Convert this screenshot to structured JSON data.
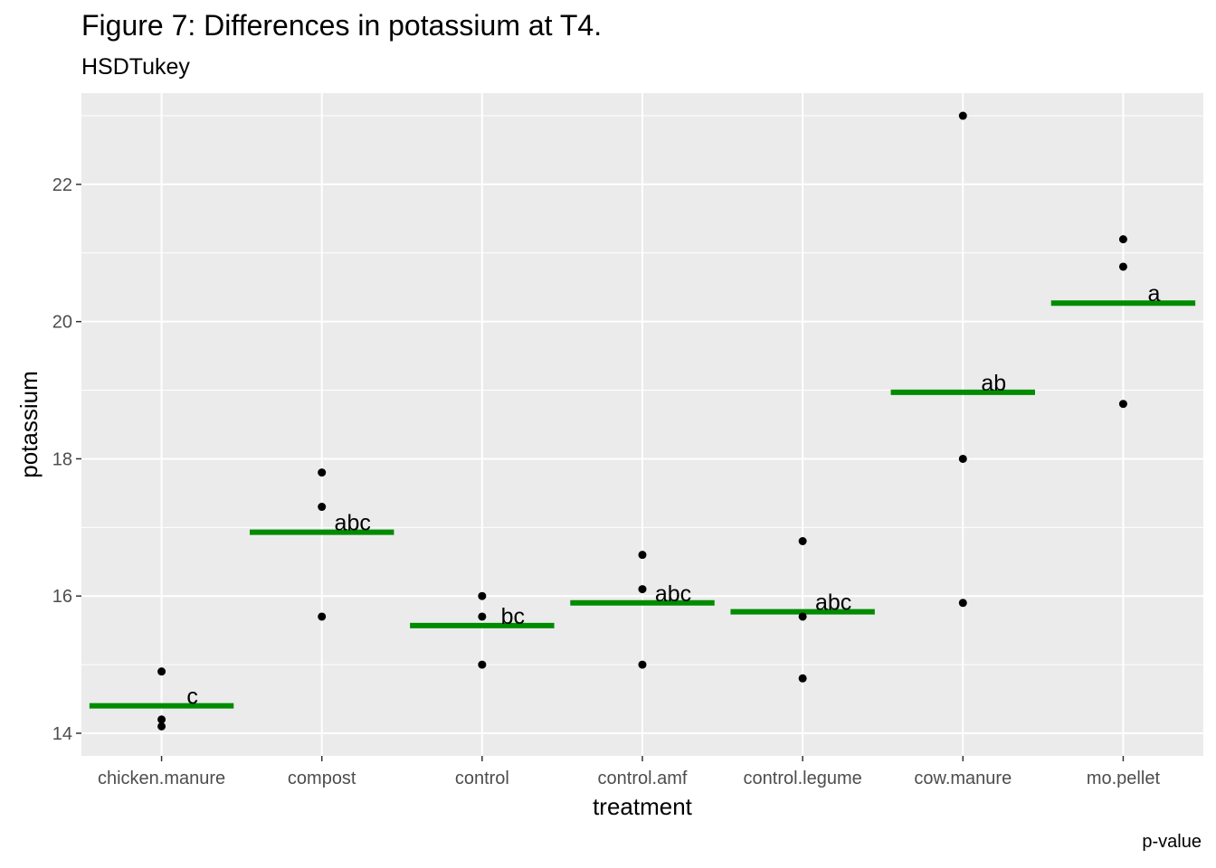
{
  "title": "Figure 7: Differences in potassium at T4.",
  "subtitle": "HSDTukey",
  "caption": "p-value",
  "chart_data": {
    "type": "scatter",
    "xlabel": "treatment",
    "ylabel": "potassium",
    "categories": [
      "chicken.manure",
      "compost",
      "control",
      "control.amf",
      "control.legume",
      "cow.manure",
      "mo.pellet"
    ],
    "ylim": [
      13.67,
      23.33
    ],
    "yticks": [
      14,
      16,
      18,
      20,
      22
    ],
    "grid": true,
    "mean_color": "#008B00",
    "point_color": "#000000",
    "panel_background": "#EBEBEB",
    "points": [
      {
        "category": "chicken.manure",
        "values": [
          14.9,
          14.2,
          14.1
        ]
      },
      {
        "category": "compost",
        "values": [
          17.8,
          17.3,
          15.7
        ]
      },
      {
        "category": "control",
        "values": [
          16.0,
          15.7,
          15.0
        ]
      },
      {
        "category": "control.amf",
        "values": [
          16.6,
          16.1,
          15.0
        ]
      },
      {
        "category": "control.legume",
        "values": [
          16.8,
          15.7,
          14.8
        ]
      },
      {
        "category": "cow.manure",
        "values": [
          23.0,
          18.0,
          15.9
        ]
      },
      {
        "category": "mo.pellet",
        "values": [
          21.2,
          20.8,
          18.8
        ]
      }
    ],
    "means": [
      14.4,
      16.93,
      15.57,
      15.9,
      15.77,
      18.97,
      20.27
    ],
    "letters": [
      "c",
      "abc",
      "bc",
      "abc",
      "abc",
      "ab",
      "a"
    ]
  }
}
